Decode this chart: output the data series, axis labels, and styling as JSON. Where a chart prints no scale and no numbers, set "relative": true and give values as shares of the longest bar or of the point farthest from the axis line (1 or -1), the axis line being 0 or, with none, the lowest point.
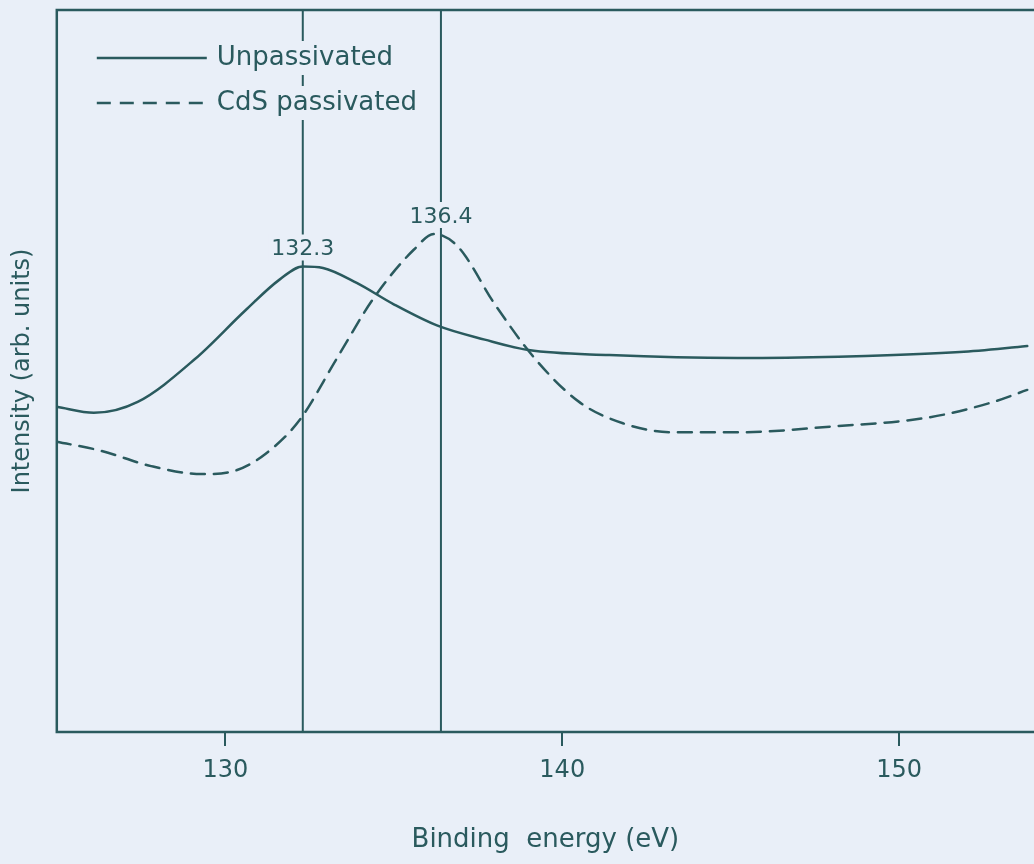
{
  "chart_data": {
    "type": "line",
    "xlabel": "Binding  energy (eV)",
    "ylabel": "Intensity (arb. units)",
    "relative": true,
    "xlim": [
      125,
      154
    ],
    "xticks": [
      130,
      140,
      150
    ],
    "grid": false,
    "legend": "top left",
    "marker": "none",
    "series": [
      {
        "name": "Unpassivated",
        "color": "#2a5a5e",
        "line_style": "solid",
        "x": [
          125.0,
          126.1,
          127.4,
          129.1,
          130.6,
          131.6,
          132.3,
          132.9,
          133.9,
          135.0,
          136.3,
          137.7,
          139.0,
          141.4,
          145.2,
          149.0,
          151.8,
          153.8
        ],
        "values": [
          0.653,
          0.641,
          0.663,
          0.749,
          0.847,
          0.908,
          0.935,
          0.932,
          0.902,
          0.859,
          0.816,
          0.788,
          0.767,
          0.757,
          0.751,
          0.755,
          0.763,
          0.775
        ]
      },
      {
        "name": "CdS passivated",
        "color": "#2a5a5e",
        "line_style": "dashed",
        "x": [
          125.0,
          126.3,
          127.8,
          129.3,
          130.3,
          131.2,
          132.2,
          133.3,
          134.4,
          135.6,
          136.2,
          136.9,
          138.0,
          139.2,
          140.5,
          141.8,
          143.3,
          145.2,
          148.1,
          150.9,
          152.8,
          153.8
        ],
        "values": [
          0.583,
          0.565,
          0.534,
          0.518,
          0.525,
          0.559,
          0.626,
          0.749,
          0.871,
          0.969,
          1.0,
          0.975,
          0.859,
          0.749,
          0.663,
          0.62,
          0.602,
          0.602,
          0.614,
          0.632,
          0.663,
          0.687
        ]
      }
    ],
    "ref_lines": [
      {
        "axis": "x",
        "value": 132.3,
        "label": "132.3",
        "color": "#2a5a5e"
      },
      {
        "axis": "x",
        "value": 136.4,
        "label": "136.4",
        "color": "#2a5a5e"
      }
    ]
  }
}
